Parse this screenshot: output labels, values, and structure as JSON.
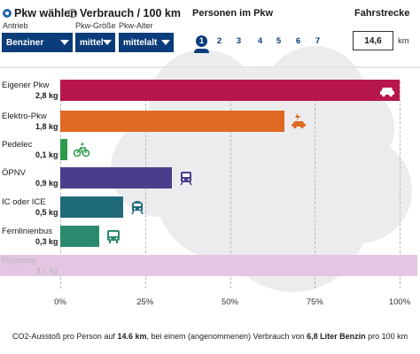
{
  "header": {
    "radio_options": [
      {
        "label": "Pkw wählen",
        "selected": true
      },
      {
        "label": "Verbrauch / 100 km",
        "selected": false
      }
    ],
    "fields": [
      {
        "label": "Antrieb",
        "value": "Benziner"
      },
      {
        "label": "Pkw-Größe",
        "value": "mittel"
      },
      {
        "label": "Pkw-Alter",
        "value": "mittelalt"
      }
    ],
    "persons_heading": "Personen im Pkw",
    "persons": [
      "1",
      "2",
      "3",
      "4",
      "5",
      "6",
      "7"
    ],
    "persons_selected": "1",
    "distance_heading": "Fahrstrecke",
    "distance_value": "14,6",
    "distance_unit": "km"
  },
  "colors": {
    "accent": "#0b3d7a",
    "pkw": "#b8174e",
    "elektro": "#e06a23",
    "pedelec": "#2e9a4a",
    "oepnv": "#4a3e8c",
    "ic": "#1f6b7a",
    "bus": "#2b8a6e",
    "flugzeug": "#e5c6e2"
  },
  "chart_data": {
    "type": "bar",
    "orientation": "horizontal",
    "categories": [
      "Eigener Pkw",
      "Elektro-Pkw",
      "Pedelec",
      "ÖPNV",
      "IC oder ICE",
      "Fernlinienbus",
      "Flugzeug"
    ],
    "value_labels": [
      "2,8 kg",
      "1,8 kg",
      "0,1 kg",
      "0,9 kg",
      "0,5 kg",
      "0,3 kg",
      "3,1 kg"
    ],
    "values_percent": [
      100,
      66,
      2,
      33,
      18.5,
      11.5,
      100
    ],
    "bar_colors": [
      "#b8174e",
      "#e06a23",
      "#2e9a4a",
      "#4a3e8c",
      "#1f6b7a",
      "#2b8a6e",
      "#e5c6e2"
    ],
    "icons": [
      "car-icon",
      "ev-charging-icon",
      "ebike-icon",
      "tram-icon",
      "train-icon",
      "bus-icon",
      ""
    ],
    "dimmed": [
      false,
      false,
      false,
      false,
      false,
      false,
      true
    ],
    "x_ticks": [
      "0%",
      "25%",
      "50%",
      "75%",
      "100%"
    ],
    "xlim": [
      0,
      100
    ],
    "grid": true
  },
  "caption": {
    "part1": "CO2-Ausstoß pro Person auf ",
    "distance": "14.6 km",
    "part2": ", bei einem (angenommenen) Verbrauch von ",
    "consumption": "6,8 Liter Benzin",
    "part3": " pro 100 km"
  }
}
